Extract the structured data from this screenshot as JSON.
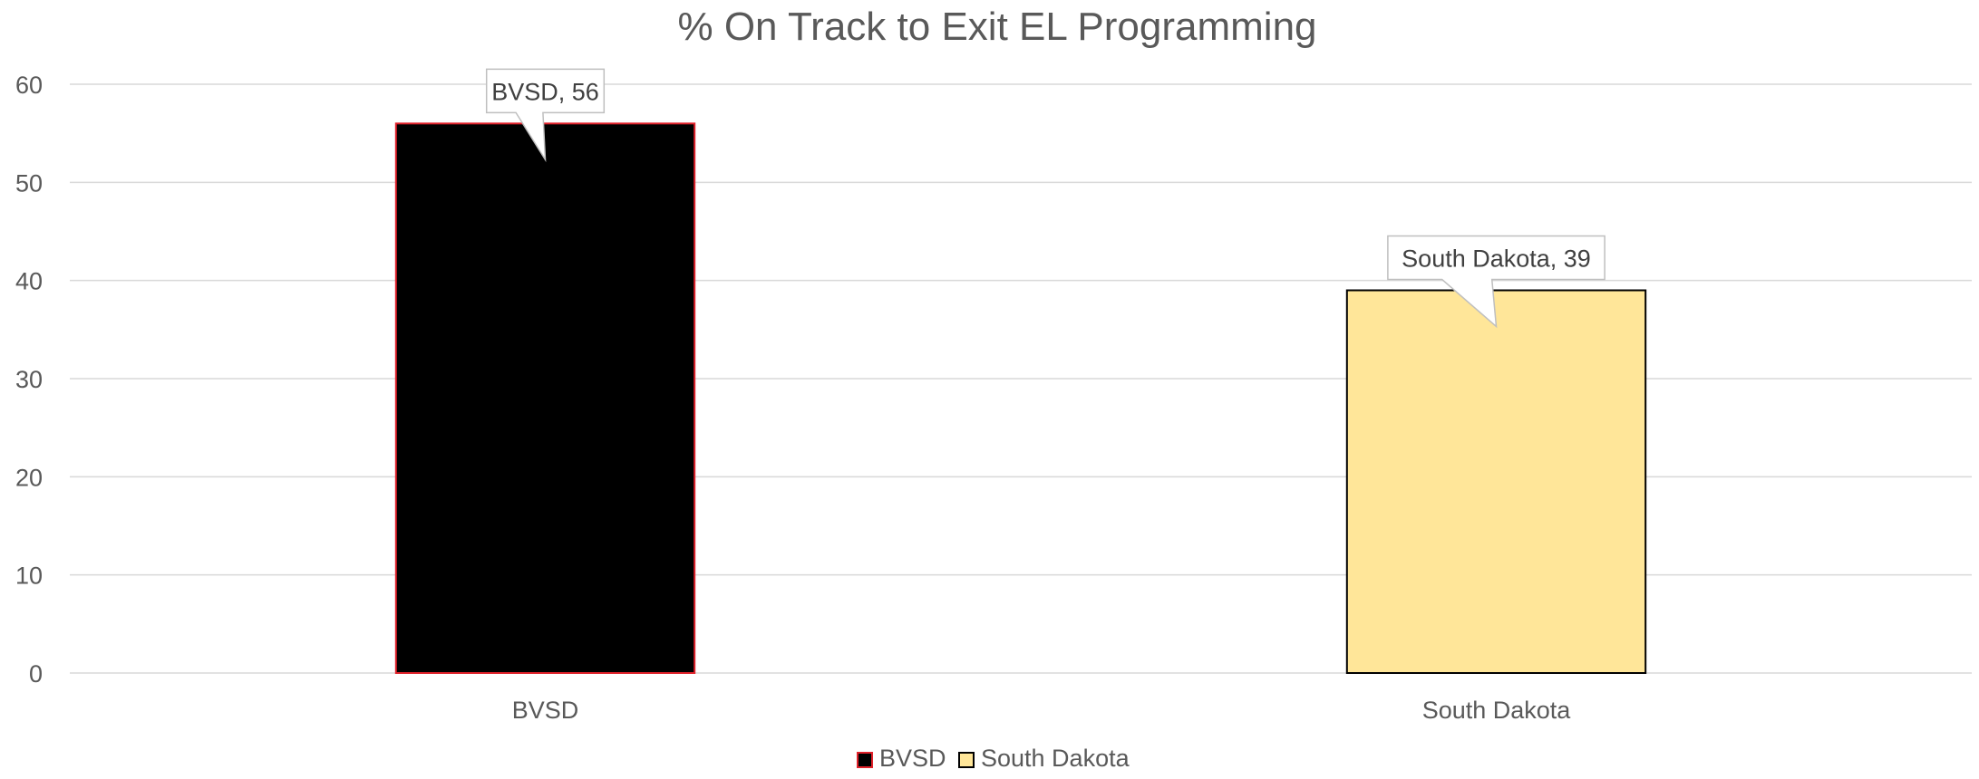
{
  "chart_data": {
    "type": "bar",
    "title": "% On Track to Exit EL Programming",
    "xlabel": "",
    "ylabel": "",
    "categories": [
      "BVSD",
      "South Dakota"
    ],
    "values": [
      56,
      39
    ],
    "ylim": [
      0,
      60
    ],
    "yticks": [
      "0",
      "10",
      "20",
      "30",
      "40",
      "50",
      "60"
    ],
    "grid": true,
    "legend_position": "bottom",
    "bars": [
      {
        "category": "BVSD",
        "value": 56,
        "label": "BVSD, 56",
        "fill": "#000000",
        "stroke": "#e0212a"
      },
      {
        "category": "South Dakota",
        "value": 39,
        "label": "South Dakota, 39",
        "fill": "#ffe699",
        "stroke": "#000000"
      }
    ],
    "legend": [
      {
        "name": "BVSD",
        "fill": "#000000",
        "stroke": "#e0212a"
      },
      {
        "name": "South Dakota",
        "fill": "#ffe699",
        "stroke": "#000000"
      }
    ],
    "colors": {
      "gridline": "#d9d9d9",
      "axis_text": "#595959",
      "callout_border": "#bfbfbf"
    }
  }
}
